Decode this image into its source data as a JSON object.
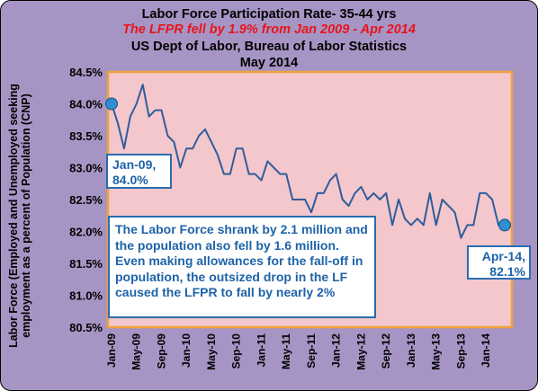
{
  "title": {
    "line1": "Labor Force Participation Rate- 35-44 yrs",
    "line2": "The LFPR fell by 1.9% from Jan 2009 - Apr 2014",
    "line3": "US Dept of Labor, Bureau of Labor Statistics",
    "line4": "May 2014"
  },
  "colors": {
    "frame_background": "#a695c4",
    "plot_background": "#f3c7cc",
    "plot_border": "#f0a23a",
    "line": "#2f5d9c",
    "marker": "#2f8fd0",
    "subtitle_red": "#e8141b",
    "callout_text": "#1e63a8"
  },
  "chart_data": {
    "type": "line",
    "title": "Labor Force Participation Rate- 35-44 yrs",
    "ylabel_lines": [
      "Labor Force (Employed and Unemployed seeking",
      "employment as a percent of Population (CNP)"
    ],
    "xlabel": "",
    "ylim": [
      80.5,
      84.5
    ],
    "ytick_labels": [
      "84.5%",
      "84.0%",
      "83.5%",
      "83.0%",
      "82.5%",
      "82.0%",
      "81.5%",
      "81.0%",
      "80.5%"
    ],
    "ytick_values": [
      84.5,
      84.0,
      83.5,
      83.0,
      82.5,
      82.0,
      81.5,
      81.0,
      80.5
    ],
    "xtick_labels": [
      "Jan-09",
      "May-09",
      "Sep-09",
      "Jan-10",
      "May-10",
      "Sep-10",
      "Jan-11",
      "May-11",
      "Sep-11",
      "Jan-12",
      "May-12",
      "Sep-12",
      "Jan-13",
      "May-13",
      "Sep-13",
      "Jan-14"
    ],
    "xtick_month_index": [
      0,
      4,
      8,
      12,
      16,
      20,
      24,
      28,
      32,
      36,
      40,
      44,
      48,
      52,
      56,
      60
    ],
    "grid": false,
    "series": [
      {
        "start": "Jan-09",
        "end": "Apr-14",
        "values": [
          84.0,
          83.7,
          83.3,
          83.8,
          84.0,
          84.3,
          83.8,
          83.9,
          83.9,
          83.5,
          83.4,
          83.0,
          83.3,
          83.3,
          83.5,
          83.6,
          83.4,
          83.2,
          82.9,
          82.9,
          83.3,
          83.3,
          82.9,
          82.9,
          82.8,
          83.1,
          83.0,
          82.9,
          82.9,
          82.5,
          82.5,
          82.5,
          82.3,
          82.6,
          82.6,
          82.8,
          82.9,
          82.5,
          82.4,
          82.6,
          82.7,
          82.5,
          82.6,
          82.5,
          82.6,
          82.1,
          82.5,
          82.2,
          82.1,
          82.2,
          82.1,
          82.6,
          82.1,
          82.5,
          82.4,
          82.3,
          81.9,
          82.1,
          82.1,
          82.6,
          82.6,
          82.5,
          82.1,
          82.1
        ]
      }
    ],
    "highlighted_points": [
      {
        "label": "Jan-09, 84.0%",
        "month_index": 0,
        "value": 84.0
      },
      {
        "label": "Apr-14, 82.1%",
        "month_index": 63,
        "value": 82.1
      }
    ]
  },
  "callouts": {
    "start": {
      "line1": "Jan-09,",
      "line2": "84.0%"
    },
    "end": {
      "line1": "Apr-14,",
      "line2": "82.1%"
    },
    "note": "The Labor Force  shrank by 2.1 million and the population also fell by 1.6 million.  Even making allowances for the fall-off in population, the outsized drop in the  LF caused the LFPR to fall by nearly 2%"
  }
}
